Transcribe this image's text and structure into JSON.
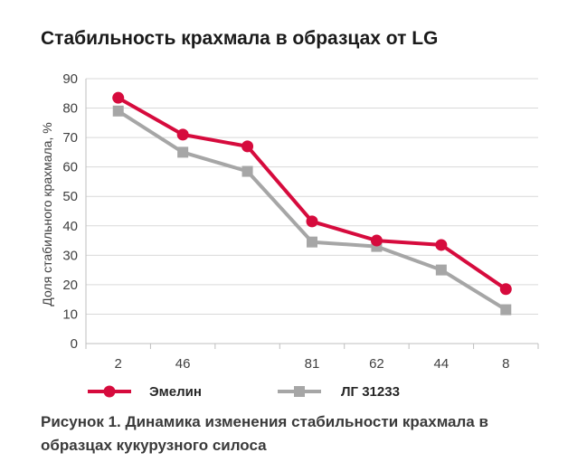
{
  "chart_data": {
    "type": "line",
    "title": "Стабильность крахмала в образцах от LG",
    "ylabel": "Доля стабильного крахмала, %",
    "categories": [
      "2",
      "46",
      "",
      "81",
      "62",
      "44",
      "8"
    ],
    "ylim": [
      0,
      90
    ],
    "yticks": [
      0,
      10,
      20,
      30,
      40,
      50,
      60,
      70,
      80,
      90
    ],
    "grid": true,
    "legend_position": "bottom",
    "series": [
      {
        "name": "Эмелин",
        "color": "#d60b3d",
        "marker": "circle",
        "values": [
          83.5,
          71,
          67,
          41.5,
          35,
          33.5,
          18.5
        ]
      },
      {
        "name": "ЛГ 31233",
        "color": "#a6a6a6",
        "marker": "square",
        "values": [
          79,
          65,
          58.5,
          34.5,
          33,
          25,
          11.5
        ]
      }
    ]
  },
  "caption": {
    "lines": [
      "Рисунок 1. Динамика изменения стабильности крахмала в",
      "образцах кукурузного силоса"
    ]
  }
}
